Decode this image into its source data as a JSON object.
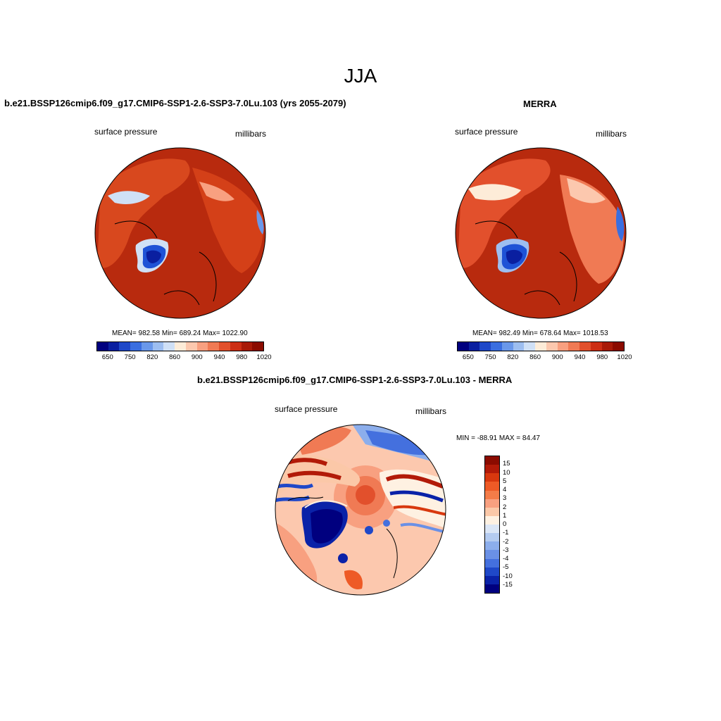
{
  "season": "JJA",
  "panels": {
    "left": {
      "title": "b.e21.BSSP126cmip6.f09_g17.CMIP6-SSP1-2.6-SSP3-7.0Lu.103 (yrs 2055-2079)",
      "variable": "surface pressure",
      "units": "millibars",
      "stats": "MEAN= 982.58  Min= 689.24  Max= 1022.90",
      "colorbar_ticks": [
        "650",
        "750",
        "820",
        "860",
        "900",
        "940",
        "980",
        "1020"
      ]
    },
    "right": {
      "title": "MERRA",
      "variable": "surface pressure",
      "units": "millibars",
      "stats": "MEAN= 982.49  Min= 678.64  Max= 1018.53",
      "colorbar_ticks": [
        "650",
        "750",
        "820",
        "860",
        "900",
        "940",
        "980",
        "1020"
      ]
    },
    "diff": {
      "title": "b.e21.BSSP126cmip6.f09_g17.CMIP6-SSP1-2.6-SSP3-7.0Lu.103 - MERRA",
      "variable": "surface pressure",
      "units": "millibars",
      "stats": "MIN = -88.91 MAX =  84.47",
      "colorbar_ticks": [
        "15",
        "10",
        "5",
        "4",
        "3",
        "2",
        "1",
        "0",
        "-1",
        "-2",
        "-3",
        "-4",
        "-5",
        "-10",
        "-15"
      ]
    }
  },
  "colors": {
    "abs_scale": [
      "#00007f",
      "#0a1fa0",
      "#1f48c8",
      "#3a6ee0",
      "#6a98ea",
      "#9dbef0",
      "#cfe0f6",
      "#fdecd8",
      "#fcc8ae",
      "#f8a080",
      "#f07a54",
      "#e2502c",
      "#cc2e14",
      "#a81a08",
      "#8b0b00"
    ],
    "diff_scale": [
      "#8b0b00",
      "#b21a08",
      "#d8380e",
      "#ee5a26",
      "#f47c48",
      "#f8a080",
      "#fbc8a8",
      "#fef1e2",
      "#dbe6f6",
      "#b4cbf0",
      "#8caeec",
      "#6a90e6",
      "#4470de",
      "#1f48c8",
      "#0a22a8",
      "#00007f"
    ],
    "ocean_fill": "#b82a0e",
    "land_fill": "#d8481e",
    "ice_low": "#1e52d6"
  }
}
